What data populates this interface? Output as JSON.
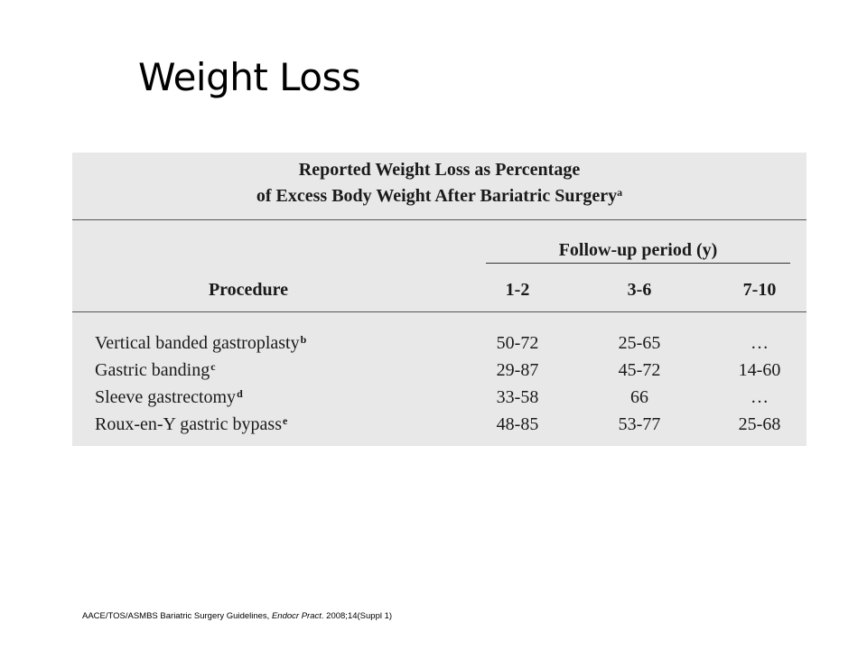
{
  "slide": {
    "title": "Weight Loss"
  },
  "table": {
    "caption_line1": "Reported Weight Loss as Percentage",
    "caption_line2": "of Excess Body Weight After Bariatric Surgery",
    "caption_sup": "a",
    "followup_header": "Follow-up period (y)",
    "columns": {
      "procedure": "Procedure",
      "period_1": "1-2",
      "period_2": "3-6",
      "period_3": "7-10"
    },
    "rows": [
      {
        "procedure": "Vertical banded gastroplasty",
        "sup": "b",
        "period_1": "50-72",
        "period_2": "25-65",
        "period_3": "…"
      },
      {
        "procedure": "Gastric banding",
        "sup": "c",
        "period_1": "29-87",
        "period_2": "45-72",
        "period_3": "14-60"
      },
      {
        "procedure": "Sleeve gastrectomy",
        "sup": "d",
        "period_1": "33-58",
        "period_2": "66",
        "period_3": "…"
      },
      {
        "procedure": "Roux-en-Y gastric bypass",
        "sup": "e",
        "period_1": "48-85",
        "period_2": "53-77",
        "period_3": "25-68"
      }
    ]
  },
  "footnote": {
    "prefix": "AACE/TOS/ASMBS Bariatric Surgery Guidelines, ",
    "journal": "Endocr Pract",
    "suffix": ". 2008;14(Suppl 1)"
  }
}
